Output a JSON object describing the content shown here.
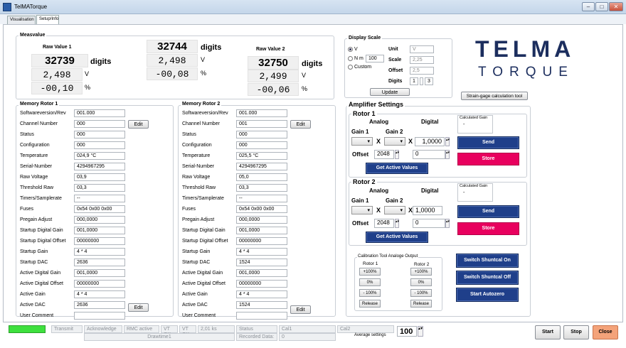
{
  "window": {
    "title": "TelMATorque",
    "min": "–",
    "max": "□",
    "close": "✕"
  },
  "tabs": [
    {
      "label": "Visualisation"
    },
    {
      "label": "Setup/Info"
    }
  ],
  "meas": {
    "legend": "Measvalue",
    "rv1_label": "Raw Value 1",
    "rv2_label": "Raw Value 2",
    "rv1_digits": "32739",
    "rv1_unit": "digits",
    "rv1_volt": "2,498",
    "rv1_volt_unit": "V",
    "rv1_pct": "-00,10",
    "rv1_pct_unit": "%",
    "c_digits": "32744",
    "c_unit": "digits",
    "c_volt": "2,498",
    "c_volt_unit": "V",
    "c_pct": "-00,08",
    "c_pct_unit": "%",
    "rv2_digits": "32750",
    "rv2_unit": "digits",
    "rv2_volt": "2,499",
    "rv2_volt_unit": "V",
    "rv2_pct": "-00,06",
    "rv2_pct_unit": "%"
  },
  "display_scale": {
    "legend": "Display Scale",
    "opt_v": "V",
    "opt_nm": "N m",
    "nm_value": "100",
    "opt_custom": "Custom",
    "unit_label": "Unit",
    "unit_value": "V",
    "scale_label": "Scale",
    "scale_value": "2,25",
    "offset_label": "Offset",
    "offset_value": "2,5",
    "digits_label": "Digits",
    "digits_a": "1",
    "digits_b": "3",
    "update": "Update"
  },
  "logo": {
    "line1": "TELMA",
    "line2": "TORQUE",
    "strain": "Strain-gage calculation tool"
  },
  "mem1": {
    "legend": "Memory Rotor 1",
    "edit1": "Edit",
    "edit2": "Edit",
    "rows": [
      {
        "label": "Softwareversion/Rev",
        "value": "001.000"
      },
      {
        "label": "Channel Number",
        "value": "000"
      },
      {
        "label": "Status",
        "value": "000"
      },
      {
        "label": "Configuration",
        "value": "000"
      },
      {
        "label": "Temperature",
        "value": "024,9 °C"
      },
      {
        "label": "Serial-Number",
        "value": "4294967295"
      },
      {
        "label": "Raw Voltage",
        "value": "03,9"
      },
      {
        "label": "Threshold Raw",
        "value": "03,3"
      },
      {
        "label": "Timers/Samplerate",
        "value": "--"
      },
      {
        "label": "Fuses",
        "value": "0x54 0x00 0x00"
      },
      {
        "label": "Pregain Adjust",
        "value": "000,0000"
      },
      {
        "label": "Startup Digital Gain",
        "value": "001,0000"
      },
      {
        "label": "Startup Digital Offset",
        "value": "00000000"
      },
      {
        "label": "Startup Gain",
        "value": "4 * 4"
      },
      {
        "label": "Startup DAC",
        "value": "2636"
      },
      {
        "label": "Active Digital Gain",
        "value": "001,0000"
      },
      {
        "label": "Active Digital Offset",
        "value": "00000000"
      },
      {
        "label": "Active Gain",
        "value": "4 * 4"
      },
      {
        "label": "Active DAC",
        "value": "2636"
      },
      {
        "label": "User Comment",
        "value": ""
      }
    ]
  },
  "mem2": {
    "legend": "Memory Rotor 2",
    "edit1": "Edit",
    "edit2": "Edit",
    "rows": [
      {
        "label": "Softwareversion/Rev",
        "value": "001.000"
      },
      {
        "label": "Channel Number",
        "value": "001"
      },
      {
        "label": "Status",
        "value": "000"
      },
      {
        "label": "Configuration",
        "value": "000"
      },
      {
        "label": "Temperature",
        "value": "025,5 °C"
      },
      {
        "label": "Serial-Number",
        "value": "4294967295"
      },
      {
        "label": "Raw Voltage",
        "value": "05,0"
      },
      {
        "label": "Threshold Raw",
        "value": "03,3"
      },
      {
        "label": "Timers/Samplerate",
        "value": "--"
      },
      {
        "label": "Fuses",
        "value": "0x54 0x00 0x00"
      },
      {
        "label": "Pregain Adjust",
        "value": "000,0000"
      },
      {
        "label": "Startup Digital Gain",
        "value": "001,0000"
      },
      {
        "label": "Startup Digital Offset",
        "value": "00000000"
      },
      {
        "label": "Startup Gain",
        "value": "4 * 4"
      },
      {
        "label": "Startup DAC",
        "value": "1524"
      },
      {
        "label": "Active Digital Gain",
        "value": "001,0000"
      },
      {
        "label": "Active Digital Offset",
        "value": "00000000"
      },
      {
        "label": "Active Gain",
        "value": "4 * 4"
      },
      {
        "label": "Active DAC",
        "value": "1524"
      },
      {
        "label": "User Comment",
        "value": ""
      }
    ]
  },
  "amp": {
    "legend": "Amplifier Settings",
    "r1": {
      "title": "Rotor 1",
      "analog": "Analog",
      "digital": "Digital",
      "gain1": "Gain 1",
      "gain2": "Gain 2",
      "x": "X",
      "dig_value": "1,0000",
      "offset_label": "Offset",
      "offset_value": "2048",
      "offset_dig": "0",
      "calc_gain_label": "Calculated Gain",
      "calc_gain_value": "-",
      "send": "Send",
      "store": "Store",
      "get": "Get Active Values"
    },
    "r2": {
      "title": "Rotor 2",
      "analog": "Analog",
      "digital": "Digital",
      "gain1": "Gain 1",
      "gain2": "Gain 2",
      "x": "X",
      "dig_value": "1,0000",
      "offset_label": "Offset",
      "offset_value": "2048",
      "offset_dig": "0",
      "calc_gain_label": "Calculated Gain",
      "calc_gain_value": "-",
      "send": "Send",
      "store": "Store",
      "get": "Get Active Values"
    }
  },
  "cal": {
    "legend": "Calibration Tool Analoge Output",
    "rotor1": "Rotor 1",
    "rotor2": "Rotor 2",
    "p100": "+100%",
    "zero": "0%",
    "m100": "- 100%",
    "release": "Release",
    "shunt_on": "Switch Shuntcal On",
    "shunt_off": "Switch Shuntcal Off",
    "autozero": "Start Autozero"
  },
  "status": {
    "items": [
      "Transmit",
      "Acknowledge",
      "RMC active",
      "VT OK",
      "VT OK",
      "2,01 ks",
      "Status",
      "Cal1",
      "Cal2"
    ],
    "drawtime": "Drawtime1",
    "recorded_label": "Recorded Data:",
    "recorded_value": "0",
    "avg_label": "Average settings",
    "avg_value": "100"
  },
  "bottom": {
    "start": "Start",
    "stop": "Stop",
    "close": "Close"
  },
  "colors": {
    "navy": "#1f3f8a",
    "pink": "#e8005e",
    "logo": "#1c2e5e",
    "close": "#f4a37a"
  }
}
